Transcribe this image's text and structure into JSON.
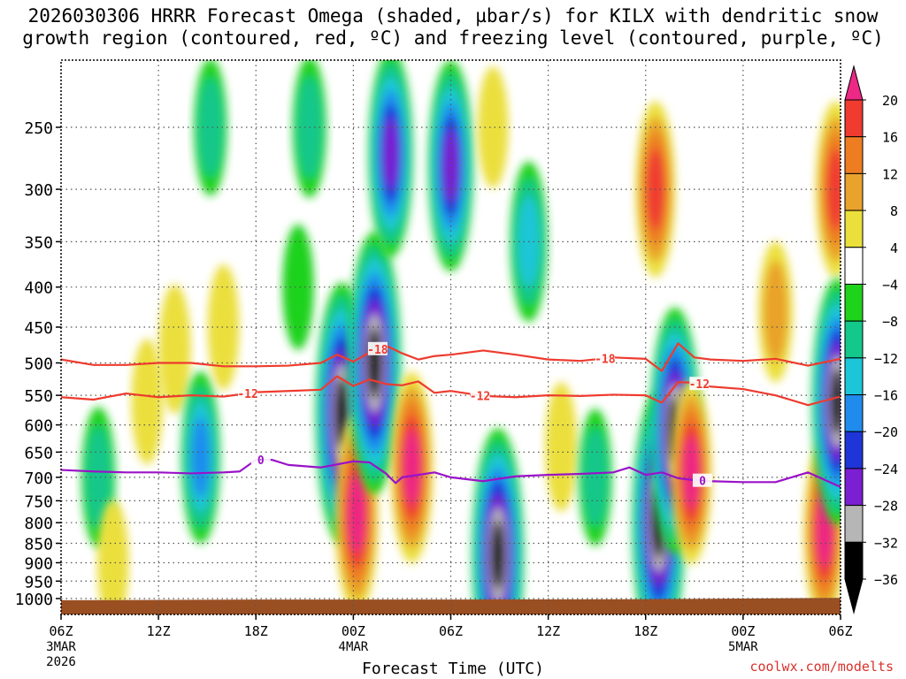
{
  "title_line1": "2026030306 HRRR Forecast Omega (shaded, µbar/s) for KILX with dendritic snow",
  "title_line2": "growth region (contoured, red, ºC) and freezing level (contoured, purple, ºC)",
  "credit": "coolwx.com/modelts",
  "colors": {
    "dgz_contour": "#ee3b2e",
    "freezing_contour": "#9a12c8",
    "terrain": "#9a4f23",
    "grid": "#555555"
  },
  "chart_data": {
    "type": "heatmap",
    "xlabel": "Forecast Time (UTC)",
    "ylabel": "",
    "x_range_hours": [
      0,
      48
    ],
    "y_scale": "log-pressure",
    "y_range_hpa": [
      1020,
      200
    ],
    "x_ticks": [
      {
        "hour": 0,
        "label": "06Z",
        "sub1": "3MAR",
        "sub2": "2026"
      },
      {
        "hour": 6,
        "label": "12Z",
        "sub1": "",
        "sub2": ""
      },
      {
        "hour": 12,
        "label": "18Z",
        "sub1": "",
        "sub2": ""
      },
      {
        "hour": 18,
        "label": "00Z",
        "sub1": "4MAR",
        "sub2": ""
      },
      {
        "hour": 24,
        "label": "06Z",
        "sub1": "",
        "sub2": ""
      },
      {
        "hour": 30,
        "label": "12Z",
        "sub1": "",
        "sub2": ""
      },
      {
        "hour": 36,
        "label": "18Z",
        "sub1": "",
        "sub2": ""
      },
      {
        "hour": 42,
        "label": "00Z",
        "sub1": "5MAR",
        "sub2": ""
      },
      {
        "hour": 48,
        "label": "06Z",
        "sub1": "",
        "sub2": ""
      }
    ],
    "y_ticks": [
      250,
      300,
      350,
      400,
      450,
      500,
      550,
      600,
      650,
      700,
      750,
      800,
      850,
      900,
      950,
      1000
    ],
    "colorbar": {
      "labels": [
        "20",
        "16",
        "12",
        "8",
        "4",
        "−4",
        "−8",
        "−12",
        "−16",
        "−20",
        "−24",
        "−28",
        "−32",
        "−36"
      ],
      "colors": [
        "#ed2885",
        "#ef3b30",
        "#ee7d22",
        "#e9a22c",
        "#ebdf3c",
        "#ffffff",
        "#1fd21a",
        "#14c78b",
        "#1cc6d8",
        "#1f8ced",
        "#1f35d7",
        "#7a1fd2",
        "#b6b6b6",
        "#000000"
      ]
    },
    "omega_features": [
      {
        "hour": 2.3,
        "p": 700,
        "value": -9
      },
      {
        "hour": 3.2,
        "p": 900,
        "value": 5
      },
      {
        "hour": 5.3,
        "p": 560,
        "value": 5
      },
      {
        "hour": 7.0,
        "p": 480,
        "value": 6
      },
      {
        "hour": 8.6,
        "p": 660,
        "value": -17
      },
      {
        "hour": 9.2,
        "p": 250,
        "value": -8
      },
      {
        "hour": 10.0,
        "p": 450,
        "value": 5
      },
      {
        "hour": 14.6,
        "p": 400,
        "value": -5
      },
      {
        "hour": 15.3,
        "p": 250,
        "value": -9
      },
      {
        "hour": 17.3,
        "p": 580,
        "value": -40
      },
      {
        "hour": 18.2,
        "p": 780,
        "value": 24
      },
      {
        "hour": 19.3,
        "p": 500,
        "value": -40
      },
      {
        "hour": 20.3,
        "p": 270,
        "value": -26
      },
      {
        "hour": 21.6,
        "p": 680,
        "value": 22
      },
      {
        "hour": 24.0,
        "p": 280,
        "value": -27
      },
      {
        "hour": 26.6,
        "p": 250,
        "value": 4
      },
      {
        "hour": 26.9,
        "p": 880,
        "value": -38
      },
      {
        "hour": 28.8,
        "p": 350,
        "value": -14
      },
      {
        "hour": 30.8,
        "p": 640,
        "value": 6
      },
      {
        "hour": 32.9,
        "p": 700,
        "value": -8
      },
      {
        "hour": 36.6,
        "p": 300,
        "value": 18
      },
      {
        "hour": 36.8,
        "p": 800,
        "value": -40
      },
      {
        "hour": 37.8,
        "p": 610,
        "value": -36
      },
      {
        "hour": 38.8,
        "p": 690,
        "value": 20
      },
      {
        "hour": 44.0,
        "p": 430,
        "value": 9
      },
      {
        "hour": 47.0,
        "p": 820,
        "value": 20
      },
      {
        "hour": 47.7,
        "p": 300,
        "value": 18
      },
      {
        "hour": 47.8,
        "p": 560,
        "value": -36
      }
    ],
    "series": [
      {
        "name": "-18",
        "color": "#ee3b2e",
        "label_hours": [
          19.5,
          33.5
        ],
        "x": [
          0,
          2,
          4,
          6,
          8,
          10,
          12,
          14,
          16,
          17,
          18,
          19,
          20,
          21,
          22,
          23,
          24,
          26,
          28,
          30,
          32,
          34,
          36,
          37,
          38,
          39,
          40,
          42,
          44,
          46,
          48
        ],
        "y": [
          495,
          503,
          503,
          500,
          500,
          505,
          505,
          504,
          500,
          488,
          498,
          485,
          475,
          486,
          495,
          490,
          488,
          482,
          488,
          495,
          497,
          492,
          494,
          512,
          472,
          492,
          495,
          497,
          494,
          504,
          494
        ]
      },
      {
        "name": "-12",
        "color": "#ee3b2e",
        "label_hours": [
          11.5,
          25.8,
          39.3
        ],
        "x": [
          0,
          2,
          4,
          6,
          8,
          10,
          12,
          14,
          16,
          17,
          18,
          19,
          20,
          21,
          22,
          23,
          24,
          26,
          28,
          30,
          32,
          34,
          36,
          37,
          38,
          39,
          40,
          42,
          44,
          46,
          48
        ],
        "y": [
          553,
          557,
          547,
          553,
          550,
          552,
          545,
          543,
          541,
          520,
          535,
          525,
          532,
          534,
          528,
          546,
          543,
          551,
          553,
          550,
          551,
          549,
          550,
          562,
          529,
          530,
          536,
          540,
          550,
          566,
          552
        ]
      },
      {
        "name": "0",
        "color": "#9a12c8",
        "label_hours": [
          12.3,
          39.5
        ],
        "x": [
          0,
          2,
          4,
          6,
          8,
          10,
          11,
          12,
          13,
          14,
          16,
          18,
          19,
          20,
          20.6,
          21,
          22,
          23,
          24,
          26,
          28,
          30,
          32,
          34,
          35,
          36,
          37,
          38,
          39,
          40,
          42,
          44,
          45,
          46,
          48
        ],
        "y": [
          685,
          688,
          690,
          690,
          692,
          690,
          688,
          665,
          665,
          675,
          680,
          668,
          670,
          692,
          712,
          700,
          695,
          690,
          700,
          708,
          698,
          695,
          693,
          690,
          680,
          695,
          690,
          702,
          706,
          708,
          710,
          710,
          700,
          690,
          720
        ]
      }
    ],
    "terrain": {
      "x": [
        0,
        12,
        24,
        36,
        42,
        48
      ],
      "p": [
        1005,
        1003,
        1003,
        1002,
        1000,
        998
      ]
    },
    "grid": true
  }
}
